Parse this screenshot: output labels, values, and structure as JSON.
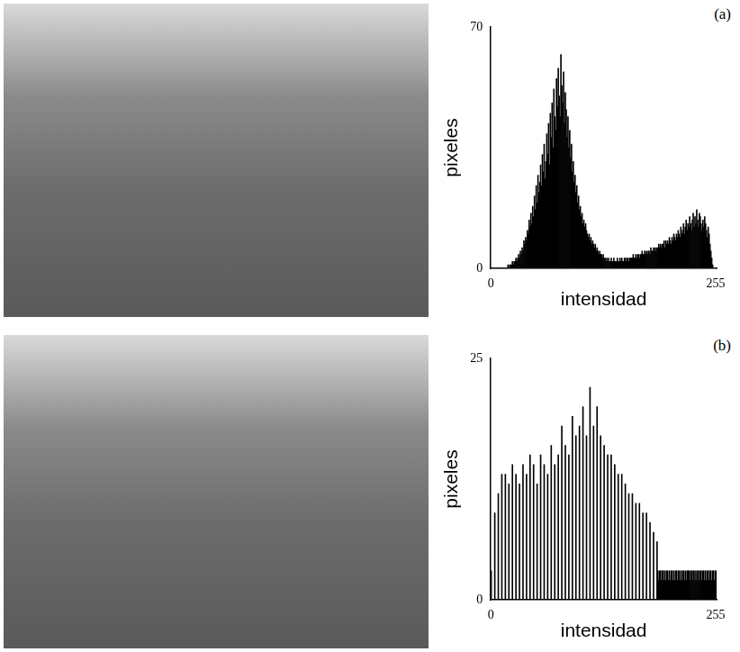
{
  "chart_data": [
    {
      "type": "histogram",
      "annotations": [
        "(a)"
      ],
      "xlabel": "intensidad",
      "ylabel": "pixeles",
      "color": "#000000",
      "grid": false,
      "xlim": [
        0,
        256
      ],
      "xticks": [
        0,
        255
      ],
      "ylim": [
        0,
        70
      ],
      "yticks": [
        0,
        70
      ],
      "bins": [
        0,
        1,
        2,
        3,
        4,
        5,
        6,
        7,
        8,
        9,
        10,
        11,
        12,
        13,
        14,
        15,
        16,
        17,
        18,
        19,
        20,
        21,
        22,
        23,
        24,
        25,
        26,
        27,
        28,
        29,
        30,
        31,
        32,
        33,
        34,
        35,
        36,
        37,
        38,
        39,
        40,
        41,
        42,
        43,
        44,
        45,
        46,
        47,
        48,
        49,
        50,
        51,
        52,
        53,
        54,
        55,
        56,
        57,
        58,
        59,
        60,
        61,
        62,
        63,
        64,
        65,
        66,
        67,
        68,
        69,
        70,
        71,
        72,
        73,
        74,
        75,
        76,
        77,
        78,
        79,
        80,
        81,
        82,
        83,
        84,
        85,
        86,
        87,
        88,
        89,
        90,
        91,
        92,
        93,
        94,
        95,
        96,
        97,
        98,
        99,
        100,
        101,
        102,
        103,
        104,
        105,
        106,
        107,
        108,
        109,
        110,
        111,
        112,
        113,
        114,
        115,
        116,
        117,
        118,
        119,
        120,
        121,
        122,
        123,
        124,
        125,
        126,
        127,
        128,
        129,
        130,
        131,
        132,
        133,
        134,
        135,
        136,
        137,
        138,
        139,
        140,
        141,
        142,
        143,
        144,
        145,
        146,
        147,
        148,
        149,
        150,
        151,
        152,
        153,
        154,
        155,
        156,
        157,
        158,
        159,
        160,
        161,
        162,
        163,
        164,
        165,
        166,
        167,
        168,
        169,
        170,
        171,
        172,
        173,
        174,
        175,
        176,
        177,
        178,
        179,
        180,
        181,
        182,
        183,
        184,
        185,
        186,
        187,
        188,
        189,
        190,
        191,
        192,
        193,
        194,
        195,
        196,
        197,
        198,
        199,
        200,
        201,
        202,
        203,
        204,
        205,
        206,
        207,
        208,
        209,
        210,
        211,
        212,
        213,
        214,
        215,
        216,
        217,
        218,
        219,
        220,
        221,
        222,
        223,
        224,
        225,
        226,
        227,
        228,
        229,
        230,
        231,
        232,
        233,
        234,
        235,
        236,
        237,
        238,
        239,
        240,
        241,
        242,
        243,
        244,
        245,
        246,
        247,
        248,
        249,
        250,
        251,
        252,
        253,
        254,
        255,
        256
      ],
      "values": [
        0,
        0,
        0,
        0,
        0,
        0,
        0,
        0,
        0,
        0,
        0,
        0,
        0,
        0,
        0,
        0,
        0,
        0,
        0,
        1,
        0,
        1,
        1,
        1,
        2,
        1,
        2,
        2,
        3,
        2,
        3,
        4,
        3,
        5,
        4,
        6,
        5,
        8,
        7,
        9,
        8,
        11,
        10,
        14,
        12,
        16,
        13,
        18,
        15,
        21,
        17,
        24,
        19,
        27,
        22,
        25,
        30,
        24,
        33,
        28,
        36,
        26,
        31,
        39,
        33,
        42,
        30,
        45,
        38,
        48,
        35,
        52,
        44,
        40,
        55,
        47,
        58,
        50,
        44,
        62,
        53,
        48,
        57,
        42,
        51,
        46,
        38,
        44,
        35,
        40,
        32,
        36,
        28,
        31,
        25,
        27,
        22,
        24,
        19,
        21,
        17,
        18,
        15,
        16,
        13,
        14,
        12,
        13,
        11,
        10,
        9,
        10,
        8,
        9,
        7,
        8,
        7,
        6,
        7,
        5,
        6,
        5,
        4,
        5,
        4,
        4,
        3,
        4,
        3,
        3,
        2,
        3,
        2,
        3,
        2,
        2,
        3,
        2,
        2,
        3,
        2,
        2,
        2,
        3,
        2,
        2,
        3,
        2,
        3,
        2,
        2,
        3,
        3,
        2,
        3,
        3,
        2,
        3,
        3,
        3,
        3,
        4,
        3,
        3,
        4,
        3,
        4,
        4,
        3,
        4,
        4,
        5,
        4,
        4,
        5,
        4,
        5,
        4,
        5,
        5,
        4,
        6,
        5,
        5,
        6,
        5,
        6,
        5,
        6,
        6,
        7,
        6,
        7,
        6,
        7,
        7,
        8,
        6,
        8,
        7,
        8,
        7,
        9,
        8,
        7,
        9,
        8,
        10,
        9,
        8,
        10,
        9,
        11,
        10,
        9,
        12,
        10,
        11,
        13,
        10,
        12,
        14,
        11,
        13,
        12,
        15,
        13,
        11,
        14,
        16,
        12,
        15,
        13,
        17,
        14,
        12,
        16,
        15,
        13,
        11,
        14,
        12,
        15,
        13,
        11,
        9,
        12,
        10,
        7,
        5,
        3,
        1,
        0,
        0,
        0,
        0
      ]
    },
    {
      "type": "histogram",
      "annotations": [
        "(b)"
      ],
      "xlabel": "intensidad",
      "ylabel": "pixeles",
      "color": "#000000",
      "grid": false,
      "xlim": [
        0,
        256
      ],
      "xticks": [
        0,
        255
      ],
      "ylim": [
        0,
        25
      ],
      "yticks": [
        0,
        25
      ],
      "bins": [
        0,
        1,
        2,
        3,
        4,
        5,
        6,
        7,
        8,
        9,
        10,
        11,
        12,
        13,
        14,
        15,
        16,
        17,
        18,
        19,
        20,
        21,
        22,
        23,
        24,
        25,
        26,
        27,
        28,
        29,
        30,
        31,
        32,
        33,
        34,
        35,
        36,
        37,
        38,
        39,
        40,
        41,
        42,
        43,
        44,
        45,
        46,
        47,
        48,
        49,
        50,
        51,
        52,
        53,
        54,
        55,
        56,
        57,
        58,
        59,
        60,
        61,
        62,
        63,
        64,
        65,
        66,
        67,
        68,
        69,
        70,
        71,
        72,
        73,
        74,
        75,
        76,
        77,
        78,
        79,
        80,
        81,
        82,
        83,
        84,
        85,
        86,
        87,
        88,
        89,
        90,
        91,
        92,
        93,
        94,
        95,
        96,
        97,
        98,
        99,
        100,
        101,
        102,
        103,
        104,
        105,
        106,
        107,
        108,
        109,
        110,
        111,
        112,
        113,
        114,
        115,
        116,
        117,
        118,
        119,
        120,
        121,
        122,
        123,
        124,
        125,
        126,
        127,
        128,
        129,
        130,
        131,
        132,
        133,
        134,
        135,
        136,
        137,
        138,
        139,
        140,
        141,
        142,
        143,
        144,
        145,
        146,
        147,
        148,
        149,
        150,
        151,
        152,
        153,
        154,
        155,
        156,
        157,
        158,
        159,
        160,
        161,
        162,
        163,
        164,
        165,
        166,
        167,
        168,
        169,
        170,
        171,
        172,
        173,
        174,
        175,
        176,
        177,
        178,
        179,
        180,
        181,
        182,
        183,
        184,
        185,
        186,
        187,
        188,
        189,
        190,
        191,
        192,
        193,
        194,
        195,
        196,
        197,
        198,
        199,
        200,
        201,
        202,
        203,
        204,
        205,
        206,
        207,
        208,
        209,
        210,
        211,
        212,
        213,
        214,
        215,
        216,
        217,
        218,
        219,
        220,
        221,
        222,
        223,
        224,
        225,
        226,
        227,
        228,
        229,
        230,
        231,
        232,
        233,
        234,
        235,
        236,
        237,
        238,
        239,
        240,
        241,
        242,
        243,
        244,
        245,
        246,
        247,
        248,
        249,
        250,
        251,
        252,
        253,
        254,
        255,
        256
      ],
      "values": [
        3,
        0,
        0,
        0,
        9,
        0,
        0,
        0,
        11,
        0,
        0,
        0,
        13,
        0,
        0,
        0,
        13,
        0,
        0,
        0,
        12,
        0,
        0,
        0,
        14,
        0,
        0,
        0,
        13,
        0,
        0,
        0,
        12,
        0,
        0,
        0,
        14,
        0,
        0,
        0,
        13,
        0,
        0,
        0,
        15,
        0,
        0,
        0,
        14,
        0,
        0,
        0,
        12,
        0,
        0,
        0,
        15,
        0,
        0,
        0,
        14,
        0,
        0,
        0,
        13,
        0,
        0,
        0,
        16,
        0,
        0,
        0,
        14,
        0,
        0,
        0,
        15,
        0,
        0,
        0,
        18,
        0,
        0,
        0,
        16,
        0,
        0,
        0,
        15,
        0,
        0,
        0,
        19,
        0,
        0,
        0,
        17,
        0,
        0,
        0,
        18,
        0,
        0,
        0,
        20,
        0,
        0,
        0,
        17,
        0,
        0,
        0,
        22,
        0,
        0,
        0,
        18,
        0,
        0,
        0,
        20,
        0,
        0,
        0,
        17,
        0,
        0,
        0,
        16,
        0,
        0,
        0,
        15,
        0,
        0,
        0,
        15,
        0,
        0,
        0,
        14,
        0,
        0,
        0,
        13,
        0,
        0,
        0,
        13,
        0,
        0,
        0,
        12,
        0,
        0,
        0,
        11,
        0,
        0,
        0,
        11,
        0,
        0,
        0,
        10,
        0,
        0,
        0,
        10,
        0,
        0,
        0,
        9,
        0,
        0,
        0,
        9,
        0,
        0,
        0,
        8,
        0,
        0,
        0,
        7,
        0,
        0,
        0,
        6,
        3,
        2,
        3,
        3,
        2,
        3,
        3,
        2,
        3,
        2,
        3,
        3,
        2,
        3,
        2,
        3,
        3,
        2,
        3,
        2,
        3,
        3,
        2,
        3,
        3,
        2,
        3,
        2,
        3,
        3,
        2,
        3,
        2,
        3,
        3,
        3,
        2,
        3,
        3,
        2,
        3,
        3,
        2,
        3,
        2,
        3,
        3,
        2,
        3,
        3,
        2,
        3,
        3,
        2,
        3,
        2,
        3,
        3,
        2,
        3,
        3,
        2,
        3,
        3,
        2,
        3,
        3
      ]
    }
  ]
}
